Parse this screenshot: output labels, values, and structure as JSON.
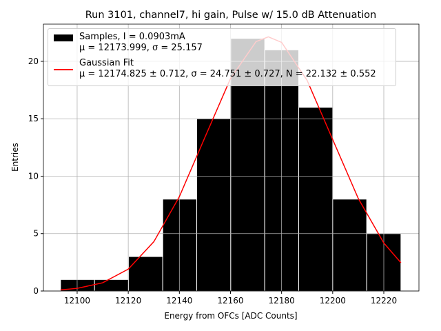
{
  "chart_data": {
    "type": "histogram",
    "title": "Run 3101, channel7, hi gain, Pulse w/ 15.0 dB Attenuation",
    "x_label": "Energy from OFCs [ADC Counts]",
    "y_label": "Entries",
    "bins": [
      12093.5,
      12106.8,
      12120.1,
      12133.5,
      12146.8,
      12160.1,
      12173.4,
      12186.7,
      12200.0,
      12213.3,
      12226.7
    ],
    "series": [
      {
        "name": "Samples, I = 0.0903mA\nμ = 12173.999, σ = 25.157",
        "color": "#000000",
        "values": [
          1,
          1,
          3,
          8,
          15,
          22,
          21,
          16,
          8,
          5
        ]
      },
      {
        "name": "Gaussian Fit\nμ = 12174.825 ± 0.712, σ = 24.751 ± 0.727, N = 22.132 ± 0.552",
        "color": "#ff0000",
        "x": [
          12093.5,
          12100,
          12110,
          12120,
          12130,
          12140,
          12150,
          12160,
          12170,
          12174.825,
          12180,
          12190,
          12200,
          12210,
          12220,
          12226.7
        ],
        "values": [
          0.1,
          0.229,
          0.717,
          1.904,
          4.29,
          8.22,
          13.38,
          18.5,
          21.72,
          22.132,
          21.65,
          18.34,
          13.19,
          8.06,
          4.18,
          2.46
        ]
      }
    ],
    "xlim": [
      12086.8,
      12233.75
    ],
    "ylim": [
      0,
      23.24
    ],
    "xticks": [
      12100,
      12120,
      12140,
      12160,
      12180,
      12200,
      12220
    ],
    "yticks": [
      0,
      5,
      10,
      15,
      20
    ],
    "grid": true
  }
}
